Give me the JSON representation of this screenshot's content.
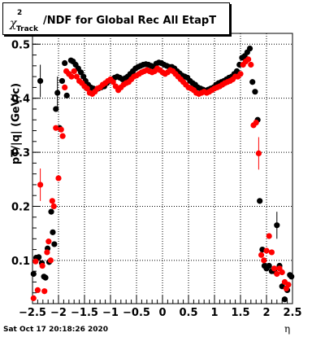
{
  "chart_data": {
    "type": "scatter",
    "title_symbol": "χ",
    "title_superscript": "2",
    "title_subscript": "Track",
    "title_rest": "/NDF for Global Rec All EtapT",
    "xlabel": "η",
    "ylabel": "pT/|q| (GeV/c)",
    "xlim": [
      -2.5,
      2.5
    ],
    "ylim": [
      0.02,
      0.52
    ],
    "grid": true,
    "x_ticks": [
      -2.5,
      -2,
      -1.5,
      -1,
      -0.5,
      0,
      0.5,
      1,
      1.5,
      2,
      2.5
    ],
    "x_tick_labels": [
      "−2.5",
      "−2",
      "−1.5",
      "−1",
      "−0.5",
      "0",
      "0.5",
      "1",
      "1.5",
      "2",
      "2.5"
    ],
    "y_ticks": [
      0.1,
      0.2,
      0.3,
      0.4,
      0.5
    ],
    "y_tick_labels": [
      "0.1",
      "0.2",
      "0.3",
      "0.4",
      "0.5"
    ],
    "series": [
      {
        "color": "#000000",
        "points": [
          {
            "x": -2.48,
            "y": 0.075
          },
          {
            "x": -2.43,
            "y": 0.105
          },
          {
            "x": -2.38,
            "y": 0.106
          },
          {
            "x": -2.35,
            "y": 0.432,
            "err": 0.03
          },
          {
            "x": -2.32,
            "y": 0.095
          },
          {
            "x": -2.28,
            "y": 0.07
          },
          {
            "x": -2.25,
            "y": 0.068
          },
          {
            "x": -2.21,
            "y": 0.122
          },
          {
            "x": -2.18,
            "y": 0.097
          },
          {
            "x": -2.14,
            "y": 0.19
          },
          {
            "x": -2.11,
            "y": 0.152
          },
          {
            "x": -2.08,
            "y": 0.13
          },
          {
            "x": -2.05,
            "y": 0.38
          },
          {
            "x": -2.02,
            "y": 0.41,
            "err": 0.03
          },
          {
            "x": -1.98,
            "y": 0.345
          },
          {
            "x": -1.93,
            "y": 0.432
          },
          {
            "x": -1.88,
            "y": 0.465
          },
          {
            "x": -1.84,
            "y": 0.405
          },
          {
            "x": -1.8,
            "y": 0.445
          },
          {
            "x": -1.76,
            "y": 0.47
          },
          {
            "x": -1.72,
            "y": 0.468
          },
          {
            "x": -1.67,
            "y": 0.462
          },
          {
            "x": -1.62,
            "y": 0.455
          },
          {
            "x": -1.57,
            "y": 0.448
          },
          {
            "x": -1.52,
            "y": 0.44
          },
          {
            "x": -1.48,
            "y": 0.432
          },
          {
            "x": -1.43,
            "y": 0.425
          },
          {
            "x": -1.38,
            "y": 0.42
          },
          {
            "x": -1.33,
            "y": 0.418
          },
          {
            "x": -1.28,
            "y": 0.416
          },
          {
            "x": -1.23,
            "y": 0.418
          },
          {
            "x": -1.18,
            "y": 0.42
          },
          {
            "x": -1.12,
            "y": 0.422
          },
          {
            "x": -1.07,
            "y": 0.428
          },
          {
            "x": -1.02,
            "y": 0.432
          },
          {
            "x": -0.97,
            "y": 0.435
          },
          {
            "x": -0.92,
            "y": 0.438
          },
          {
            "x": -0.87,
            "y": 0.44
          },
          {
            "x": -0.82,
            "y": 0.438
          },
          {
            "x": -0.77,
            "y": 0.435
          },
          {
            "x": -0.72,
            "y": 0.437
          },
          {
            "x": -0.67,
            "y": 0.44
          },
          {
            "x": -0.62,
            "y": 0.445
          },
          {
            "x": -0.57,
            "y": 0.45
          },
          {
            "x": -0.52,
            "y": 0.455
          },
          {
            "x": -0.47,
            "y": 0.458
          },
          {
            "x": -0.42,
            "y": 0.46
          },
          {
            "x": -0.37,
            "y": 0.462
          },
          {
            "x": -0.32,
            "y": 0.463
          },
          {
            "x": -0.27,
            "y": 0.462
          },
          {
            "x": -0.22,
            "y": 0.46
          },
          {
            "x": -0.17,
            "y": 0.458
          },
          {
            "x": -0.12,
            "y": 0.464
          },
          {
            "x": -0.07,
            "y": 0.466
          },
          {
            "x": -0.02,
            "y": 0.465
          },
          {
            "x": 0.03,
            "y": 0.462
          },
          {
            "x": 0.08,
            "y": 0.46
          },
          {
            "x": 0.13,
            "y": 0.458
          },
          {
            "x": 0.18,
            "y": 0.458
          },
          {
            "x": 0.23,
            "y": 0.455
          },
          {
            "x": 0.28,
            "y": 0.45
          },
          {
            "x": 0.33,
            "y": 0.446
          },
          {
            "x": 0.38,
            "y": 0.442
          },
          {
            "x": 0.43,
            "y": 0.44
          },
          {
            "x": 0.48,
            "y": 0.438
          },
          {
            "x": 0.53,
            "y": 0.432
          },
          {
            "x": 0.58,
            "y": 0.428
          },
          {
            "x": 0.63,
            "y": 0.425
          },
          {
            "x": 0.68,
            "y": 0.42
          },
          {
            "x": 0.73,
            "y": 0.418
          },
          {
            "x": 0.78,
            "y": 0.416
          },
          {
            "x": 0.83,
            "y": 0.414
          },
          {
            "x": 0.88,
            "y": 0.416
          },
          {
            "x": 0.93,
            "y": 0.418
          },
          {
            "x": 0.98,
            "y": 0.42
          },
          {
            "x": 1.03,
            "y": 0.425
          },
          {
            "x": 1.08,
            "y": 0.428
          },
          {
            "x": 1.13,
            "y": 0.43
          },
          {
            "x": 1.18,
            "y": 0.432
          },
          {
            "x": 1.23,
            "y": 0.435
          },
          {
            "x": 1.28,
            "y": 0.438
          },
          {
            "x": 1.33,
            "y": 0.44
          },
          {
            "x": 1.38,
            "y": 0.445
          },
          {
            "x": 1.43,
            "y": 0.45
          },
          {
            "x": 1.48,
            "y": 0.462
          },
          {
            "x": 1.53,
            "y": 0.475
          },
          {
            "x": 1.58,
            "y": 0.478
          },
          {
            "x": 1.63,
            "y": 0.485
          },
          {
            "x": 1.68,
            "y": 0.492
          },
          {
            "x": 1.73,
            "y": 0.43
          },
          {
            "x": 1.78,
            "y": 0.412
          },
          {
            "x": 1.83,
            "y": 0.36
          },
          {
            "x": 1.87,
            "y": 0.21
          },
          {
            "x": 1.92,
            "y": 0.12
          },
          {
            "x": 1.96,
            "y": 0.09
          },
          {
            "x": 2.0,
            "y": 0.085
          },
          {
            "x": 2.05,
            "y": 0.09
          },
          {
            "x": 2.1,
            "y": 0.08
          },
          {
            "x": 2.15,
            "y": 0.08
          },
          {
            "x": 2.2,
            "y": 0.165,
            "err": 0.025
          },
          {
            "x": 2.25,
            "y": 0.09
          },
          {
            "x": 2.3,
            "y": 0.052
          },
          {
            "x": 2.35,
            "y": 0.028
          },
          {
            "x": 2.4,
            "y": 0.045
          },
          {
            "x": 2.45,
            "y": 0.073
          },
          {
            "x": 2.48,
            "y": 0.07
          }
        ]
      },
      {
        "color": "#ff0000",
        "points": [
          {
            "x": -2.48,
            "y": 0.03
          },
          {
            "x": -2.44,
            "y": 0.098
          },
          {
            "x": -2.4,
            "y": 0.045
          },
          {
            "x": -2.35,
            "y": 0.24,
            "err": 0.03
          },
          {
            "x": -2.31,
            "y": 0.09
          },
          {
            "x": -2.27,
            "y": 0.043
          },
          {
            "x": -2.22,
            "y": 0.115
          },
          {
            "x": -2.19,
            "y": 0.135
          },
          {
            "x": -2.15,
            "y": 0.1
          },
          {
            "x": -2.12,
            "y": 0.21
          },
          {
            "x": -2.09,
            "y": 0.2
          },
          {
            "x": -2.05,
            "y": 0.345
          },
          {
            "x": -2.0,
            "y": 0.252
          },
          {
            "x": -1.95,
            "y": 0.342
          },
          {
            "x": -1.92,
            "y": 0.33
          },
          {
            "x": -1.88,
            "y": 0.42
          },
          {
            "x": -1.85,
            "y": 0.45
          },
          {
            "x": -1.8,
            "y": 0.445
          },
          {
            "x": -1.75,
            "y": 0.44
          },
          {
            "x": -1.7,
            "y": 0.45
          },
          {
            "x": -1.65,
            "y": 0.44
          },
          {
            "x": -1.6,
            "y": 0.432
          },
          {
            "x": -1.55,
            "y": 0.428
          },
          {
            "x": -1.5,
            "y": 0.422
          },
          {
            "x": -1.45,
            "y": 0.418
          },
          {
            "x": -1.4,
            "y": 0.41
          },
          {
            "x": -1.35,
            "y": 0.408
          },
          {
            "x": -1.3,
            "y": 0.412
          },
          {
            "x": -1.25,
            "y": 0.418
          },
          {
            "x": -1.2,
            "y": 0.42
          },
          {
            "x": -1.15,
            "y": 0.425
          },
          {
            "x": -1.1,
            "y": 0.428
          },
          {
            "x": -1.05,
            "y": 0.432
          },
          {
            "x": -1.0,
            "y": 0.435
          },
          {
            "x": -0.95,
            "y": 0.43
          },
          {
            "x": -0.9,
            "y": 0.422
          },
          {
            "x": -0.85,
            "y": 0.415
          },
          {
            "x": -0.8,
            "y": 0.42
          },
          {
            "x": -0.75,
            "y": 0.425
          },
          {
            "x": -0.7,
            "y": 0.428
          },
          {
            "x": -0.65,
            "y": 0.43
          },
          {
            "x": -0.6,
            "y": 0.435
          },
          {
            "x": -0.55,
            "y": 0.44
          },
          {
            "x": -0.5,
            "y": 0.442
          },
          {
            "x": -0.45,
            "y": 0.445
          },
          {
            "x": -0.4,
            "y": 0.448
          },
          {
            "x": -0.35,
            "y": 0.45
          },
          {
            "x": -0.3,
            "y": 0.452
          },
          {
            "x": -0.25,
            "y": 0.45
          },
          {
            "x": -0.2,
            "y": 0.448
          },
          {
            "x": -0.15,
            "y": 0.45
          },
          {
            "x": -0.1,
            "y": 0.455
          },
          {
            "x": -0.05,
            "y": 0.452
          },
          {
            "x": 0.0,
            "y": 0.448
          },
          {
            "x": 0.05,
            "y": 0.445
          },
          {
            "x": 0.1,
            "y": 0.448
          },
          {
            "x": 0.15,
            "y": 0.452
          },
          {
            "x": 0.2,
            "y": 0.45
          },
          {
            "x": 0.25,
            "y": 0.445
          },
          {
            "x": 0.3,
            "y": 0.44
          },
          {
            "x": 0.35,
            "y": 0.435
          },
          {
            "x": 0.4,
            "y": 0.43
          },
          {
            "x": 0.45,
            "y": 0.425
          },
          {
            "x": 0.5,
            "y": 0.42
          },
          {
            "x": 0.55,
            "y": 0.418
          },
          {
            "x": 0.6,
            "y": 0.415
          },
          {
            "x": 0.65,
            "y": 0.41
          },
          {
            "x": 0.7,
            "y": 0.408
          },
          {
            "x": 0.75,
            "y": 0.41
          },
          {
            "x": 0.8,
            "y": 0.412
          },
          {
            "x": 0.85,
            "y": 0.41
          },
          {
            "x": 0.9,
            "y": 0.412
          },
          {
            "x": 0.95,
            "y": 0.415
          },
          {
            "x": 1.0,
            "y": 0.418
          },
          {
            "x": 1.05,
            "y": 0.42
          },
          {
            "x": 1.1,
            "y": 0.422
          },
          {
            "x": 1.15,
            "y": 0.425
          },
          {
            "x": 1.2,
            "y": 0.428
          },
          {
            "x": 1.25,
            "y": 0.43
          },
          {
            "x": 1.3,
            "y": 0.432
          },
          {
            "x": 1.35,
            "y": 0.435
          },
          {
            "x": 1.4,
            "y": 0.44
          },
          {
            "x": 1.45,
            "y": 0.44
          },
          {
            "x": 1.5,
            "y": 0.445
          },
          {
            "x": 1.55,
            "y": 0.462
          },
          {
            "x": 1.6,
            "y": 0.468
          },
          {
            "x": 1.65,
            "y": 0.472
          },
          {
            "x": 1.7,
            "y": 0.462
          },
          {
            "x": 1.75,
            "y": 0.35
          },
          {
            "x": 1.8,
            "y": 0.355
          },
          {
            "x": 1.85,
            "y": 0.298,
            "err": 0.03
          },
          {
            "x": 1.9,
            "y": 0.11
          },
          {
            "x": 1.95,
            "y": 0.1
          },
          {
            "x": 2.0,
            "y": 0.118
          },
          {
            "x": 2.05,
            "y": 0.145
          },
          {
            "x": 2.1,
            "y": 0.115
          },
          {
            "x": 2.15,
            "y": 0.085
          },
          {
            "x": 2.2,
            "y": 0.075
          },
          {
            "x": 2.25,
            "y": 0.085
          },
          {
            "x": 2.3,
            "y": 0.078
          },
          {
            "x": 2.35,
            "y": 0.06
          },
          {
            "x": 2.38,
            "y": 0.048
          },
          {
            "x": 2.42,
            "y": 0.055
          }
        ]
      }
    ]
  },
  "footer": {
    "timestamp": "Sat Oct 17 20:18:26 2020"
  }
}
